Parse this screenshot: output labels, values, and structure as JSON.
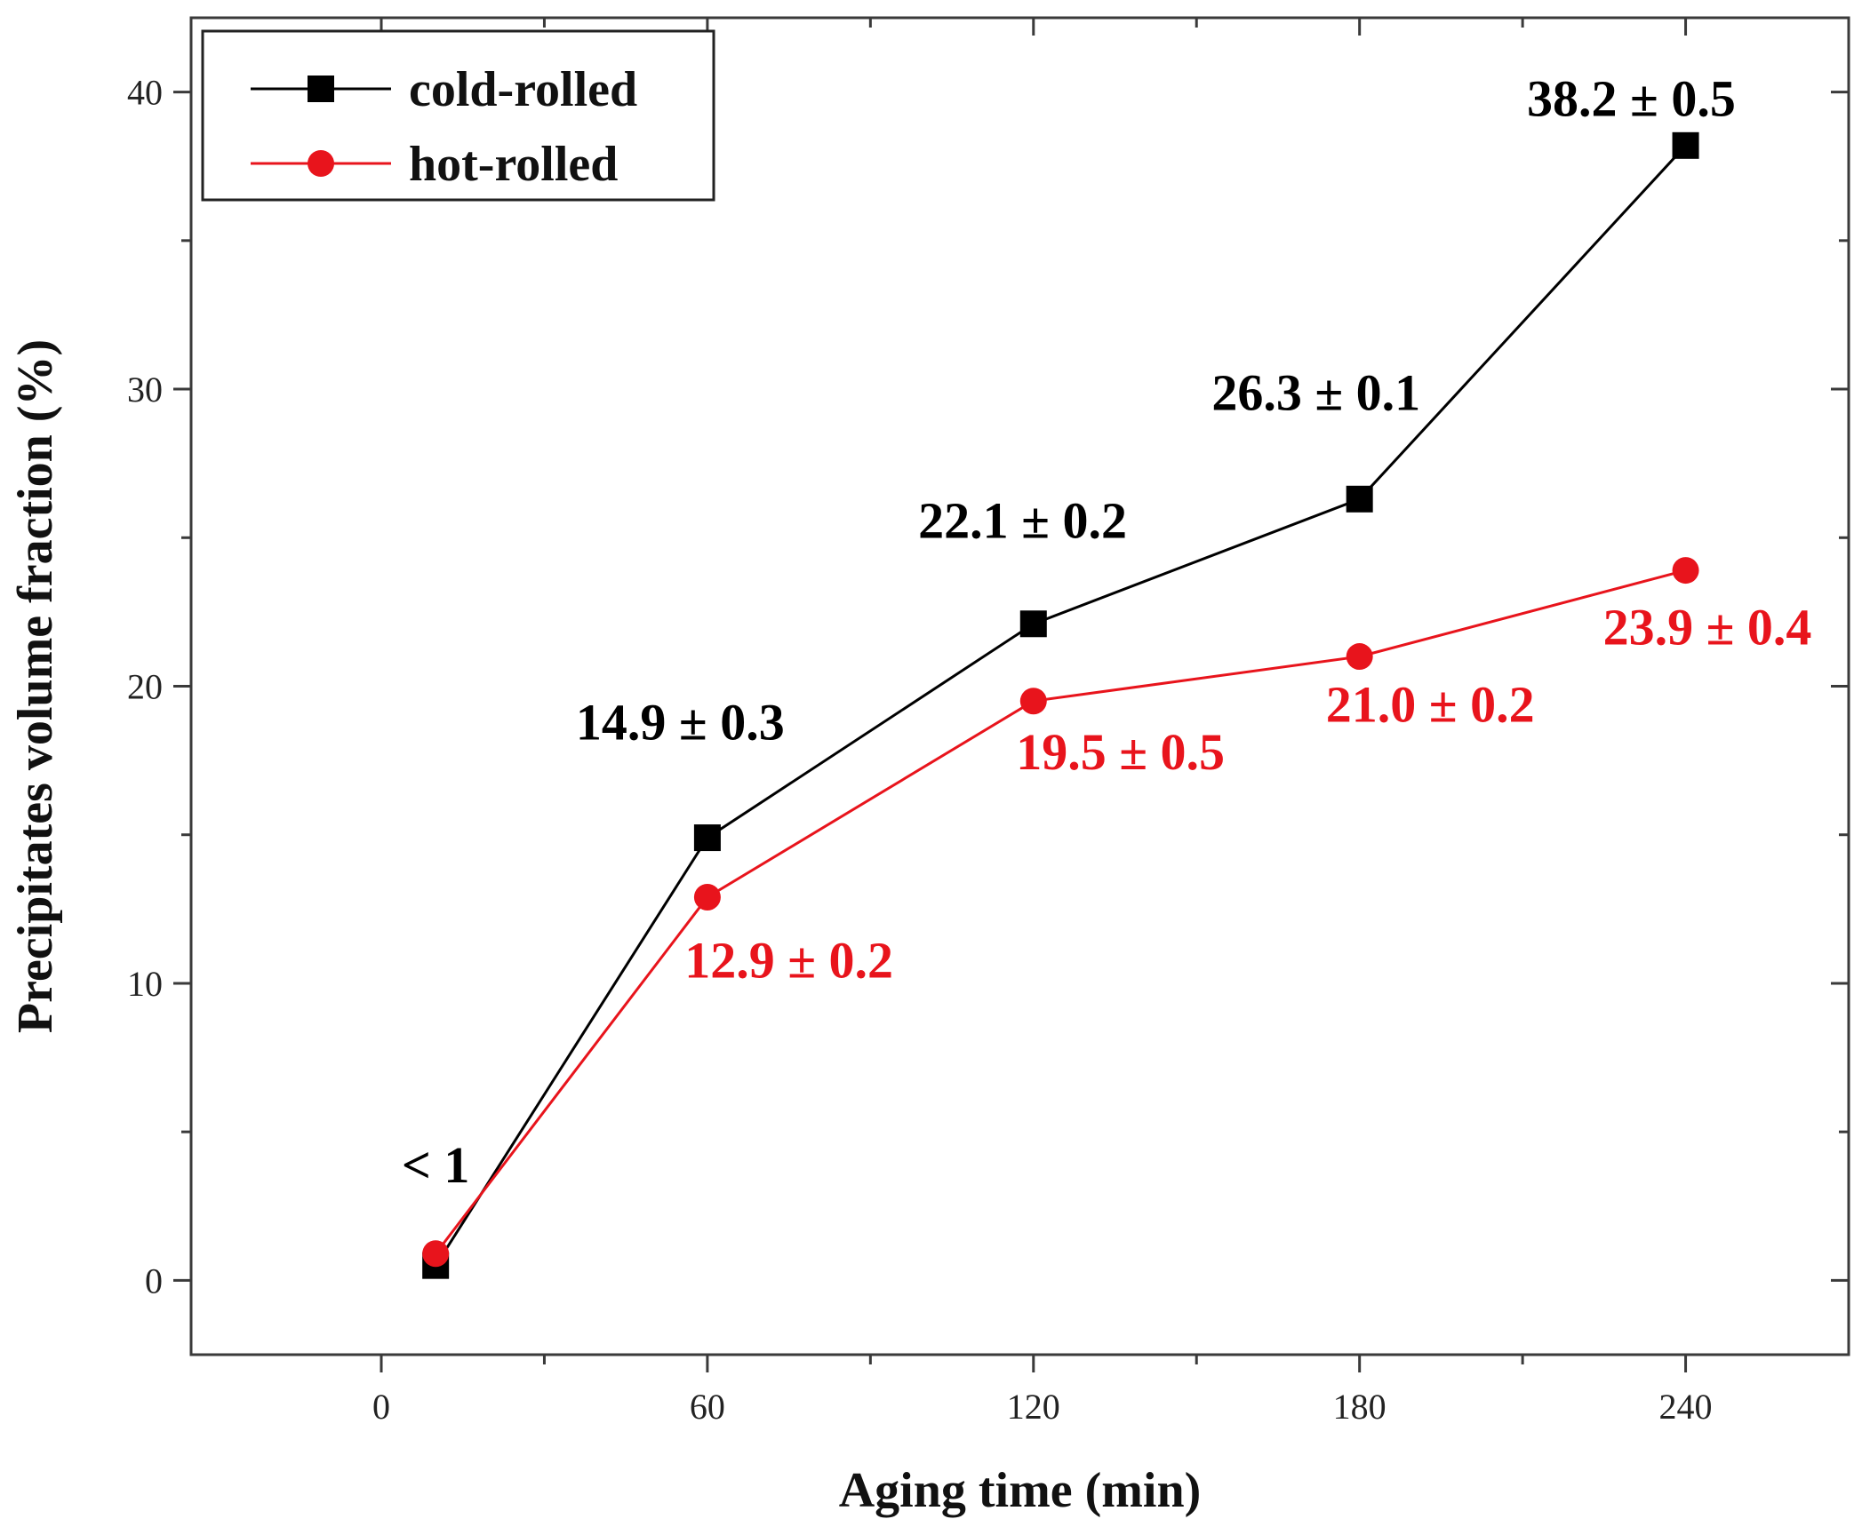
{
  "chart_data": {
    "type": "line",
    "title": "",
    "xlabel": "Aging time (min)",
    "ylabel": "Precipitates volume fraction (%)",
    "xlim": [
      -35,
      270
    ],
    "ylim": [
      -2.5,
      42.5
    ],
    "xticks": [
      0,
      60,
      120,
      180,
      240
    ],
    "xtick_labels": [
      "0",
      "60",
      "120",
      "180",
      "240"
    ],
    "xminor": [
      30,
      90,
      150,
      210
    ],
    "yticks": [
      0,
      10,
      20,
      30,
      40
    ],
    "ytick_labels": [
      "0",
      "10",
      "20",
      "30",
      "40"
    ],
    "yminor": [
      5,
      15,
      25,
      35
    ],
    "grid": false,
    "legend_position": "top-left",
    "series": [
      {
        "name": "cold-rolled",
        "color": "#000000",
        "marker": "square",
        "x": [
          10,
          60,
          120,
          180,
          240
        ],
        "y": [
          0.5,
          14.9,
          22.1,
          26.3,
          38.2
        ]
      },
      {
        "name": "hot-rolled",
        "color": "#e8141c",
        "marker": "circle",
        "x": [
          10,
          60,
          120,
          180,
          240
        ],
        "y": [
          0.9,
          12.9,
          19.5,
          21.0,
          23.9
        ]
      }
    ],
    "annotations": [
      {
        "text": "< 1",
        "series": "cold-rolled",
        "x": 10,
        "y": 3.3
      },
      {
        "text": "14.9 ± 0.3",
        "series": "cold-rolled",
        "x": 55,
        "y": 18.2
      },
      {
        "text": "22.1 ± 0.2",
        "series": "cold-rolled",
        "x": 118,
        "y": 25.0
      },
      {
        "text": "26.3 ± 0.1",
        "series": "cold-rolled",
        "x": 172,
        "y": 29.3
      },
      {
        "text": "38.2 ± 0.5",
        "series": "cold-rolled",
        "x": 230,
        "y": 39.2
      },
      {
        "text": "12.9 ± 0.2",
        "series": "hot-rolled",
        "x": 75,
        "y": 10.2
      },
      {
        "text": "19.5 ± 0.5",
        "series": "hot-rolled",
        "x": 136,
        "y": 17.2
      },
      {
        "text": "21.0 ± 0.2",
        "series": "hot-rolled",
        "x": 193,
        "y": 18.8
      },
      {
        "text": "23.9 ± 0.4",
        "series": "hot-rolled",
        "x": 244,
        "y": 21.4
      }
    ]
  }
}
